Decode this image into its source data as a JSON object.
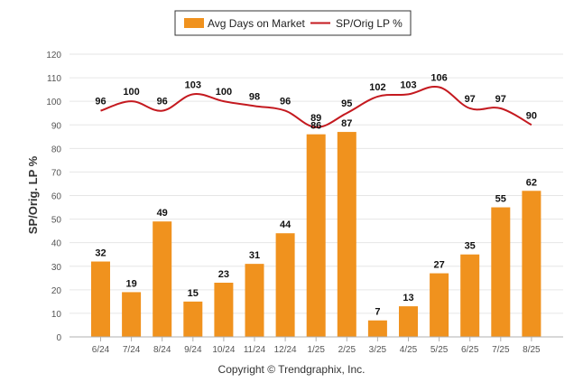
{
  "chart_data": {
    "type": "bar",
    "categories": [
      "6/24",
      "7/24",
      "8/24",
      "9/24",
      "10/24",
      "11/24",
      "12/24",
      "1/25",
      "2/25",
      "3/25",
      "4/25",
      "5/25",
      "6/25",
      "7/25",
      "8/25"
    ],
    "series": [
      {
        "name": "Avg Days on Market",
        "type": "bar",
        "color": "#f0921e",
        "values": [
          32,
          19,
          49,
          15,
          23,
          31,
          44,
          86,
          87,
          7,
          13,
          27,
          35,
          55,
          62
        ]
      },
      {
        "name": "SP/Orig LP %",
        "type": "line",
        "color": "#c4191f",
        "values": [
          96,
          100,
          96,
          103,
          100,
          98,
          96,
          89,
          95,
          102,
          103,
          106,
          97,
          97,
          90
        ]
      }
    ],
    "ylabel": "SP/Orig. LP %",
    "ylim": [
      0,
      120
    ],
    "yticks": [
      0,
      10,
      20,
      30,
      40,
      50,
      60,
      70,
      80,
      90,
      100,
      110,
      120
    ],
    "grid": true,
    "legend_position": "top-center"
  },
  "footer": {
    "copyright": "Copyright © Trendgraphix, Inc."
  }
}
